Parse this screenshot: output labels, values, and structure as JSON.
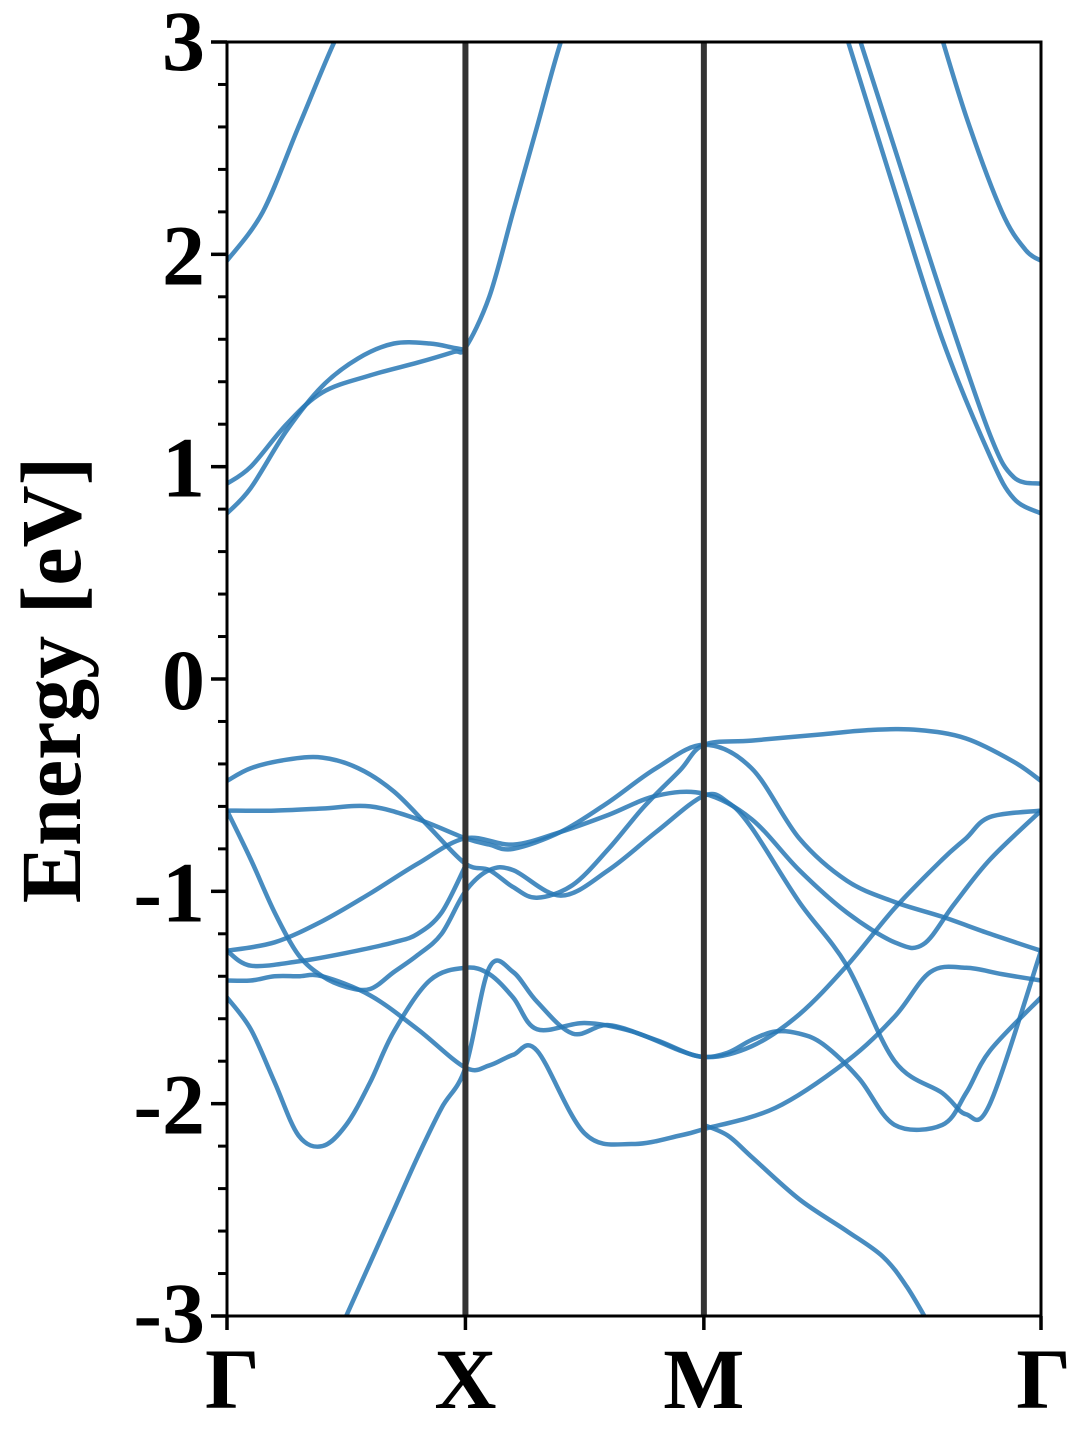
{
  "chart_data": {
    "type": "line",
    "title": "",
    "ylabel": "Energy [eV]",
    "xlabel": "",
    "ylim": [
      -3,
      3
    ],
    "yticks": [
      3,
      2,
      1,
      0,
      -1,
      -2,
      -3
    ],
    "y_minor_step": 0.2,
    "grid": false,
    "legend": "none",
    "kpoints": [
      {
        "label": "Γ",
        "x": 0
      },
      {
        "label": "X",
        "x": 1
      },
      {
        "label": "M",
        "x": 2
      },
      {
        "label": "Γ",
        "x": 3.414
      }
    ],
    "xlim": [
      0,
      3.414
    ],
    "line_color": "#2878b5",
    "kpoint_line_color": "#333333",
    "series": [
      {
        "x": [
          0,
          0.15,
          0.3,
          0.45,
          0.55
        ],
        "values": [
          1.97,
          2.2,
          2.6,
          3.0,
          3.2
        ]
      },
      {
        "x": [
          0,
          0.1,
          0.25,
          0.4,
          0.6,
          0.8,
          0.95,
          1.0,
          1.1,
          1.2,
          1.3,
          1.4,
          1.5
        ],
        "values": [
          0.92,
          1.0,
          1.2,
          1.35,
          1.43,
          1.49,
          1.54,
          1.56,
          1.8,
          2.2,
          2.6,
          3.0,
          3.3
        ]
      },
      {
        "x": [
          0,
          0.1,
          0.25,
          0.4,
          0.55,
          0.7,
          0.85,
          0.95,
          1.0
        ],
        "values": [
          0.78,
          0.9,
          1.17,
          1.38,
          1.51,
          1.58,
          1.58,
          1.56,
          1.55
        ]
      },
      {
        "x": [
          2.55,
          2.8,
          3.0,
          3.2,
          3.3,
          3.414
        ],
        "values": [
          3.2,
          2.3,
          1.6,
          1.05,
          0.85,
          0.78
        ]
      },
      {
        "x": [
          2.6,
          2.8,
          3.0,
          3.2,
          3.3,
          3.414
        ],
        "values": [
          3.2,
          2.5,
          1.8,
          1.15,
          0.95,
          0.92
        ]
      },
      {
        "x": [
          2.95,
          3.1,
          3.25,
          3.35,
          3.414
        ],
        "values": [
          3.2,
          2.65,
          2.2,
          2.02,
          1.97
        ]
      },
      {
        "x": [
          0,
          0.1,
          0.25,
          0.4,
          0.55,
          0.7,
          0.85,
          1.0,
          1.1,
          1.2,
          1.3,
          1.45,
          1.6,
          1.75,
          1.9,
          2.0,
          2.2,
          2.5,
          2.7,
          2.9,
          3.1,
          3.3,
          3.414
        ],
        "values": [
          -0.48,
          -0.42,
          -0.38,
          -0.37,
          -0.42,
          -0.53,
          -0.7,
          -0.87,
          -0.9,
          -0.98,
          -1.03,
          -0.97,
          -0.8,
          -0.6,
          -0.43,
          -0.31,
          -0.29,
          -0.26,
          -0.24,
          -0.24,
          -0.28,
          -0.39,
          -0.48
        ]
      },
      {
        "x": [
          0,
          0.2,
          0.4,
          0.6,
          0.8,
          1.0,
          1.1,
          1.2,
          1.4,
          1.6,
          1.8,
          2.0,
          2.2,
          2.4,
          2.6,
          2.8,
          3.0,
          3.2,
          3.414
        ],
        "values": [
          -0.62,
          -0.62,
          -0.61,
          -0.6,
          -0.66,
          -0.75,
          -0.78,
          -0.8,
          -0.72,
          -0.58,
          -0.42,
          -0.31,
          -0.42,
          -0.75,
          -0.95,
          -1.05,
          -1.12,
          -1.2,
          -1.28
        ]
      },
      {
        "x": [
          0,
          0.2,
          0.4,
          0.6,
          0.8,
          1.0,
          1.2,
          1.4,
          1.6,
          1.8,
          2.0,
          2.2,
          2.4,
          2.6,
          2.8,
          2.92,
          3.05,
          3.2,
          3.414
        ],
        "values": [
          -1.28,
          -1.24,
          -1.14,
          -1.01,
          -0.87,
          -0.75,
          -0.78,
          -0.72,
          -0.64,
          -0.55,
          -0.54,
          -0.66,
          -0.9,
          -1.1,
          -1.24,
          -1.25,
          -1.06,
          -0.85,
          -0.62
        ]
      },
      {
        "x": [
          0,
          0.1,
          0.2,
          0.3,
          0.4,
          0.5,
          0.6,
          0.7,
          0.8,
          0.9,
          1.0,
          1.1,
          1.2,
          1.4,
          1.6,
          1.8,
          2.0,
          2.1,
          2.2,
          2.4,
          2.6,
          2.8,
          3.0,
          3.1,
          3.2,
          3.414
        ],
        "values": [
          -0.62,
          -0.85,
          -1.1,
          -1.3,
          -1.4,
          -1.45,
          -1.46,
          -1.38,
          -1.3,
          -1.2,
          -1.0,
          -0.9,
          -0.9,
          -1.02,
          -0.9,
          -0.72,
          -0.55,
          -0.58,
          -0.7,
          -1.05,
          -1.35,
          -1.8,
          -1.95,
          -2.05,
          -2.0,
          -1.28
        ]
      },
      {
        "x": [
          0,
          0.1,
          0.3,
          0.5,
          0.7,
          0.8,
          0.9,
          1.0
        ],
        "values": [
          -1.28,
          -1.35,
          -1.33,
          -1.29,
          -1.24,
          -1.2,
          -1.1,
          -0.88
        ]
      },
      {
        "x": [
          0,
          0.1,
          0.2,
          0.3,
          0.4,
          0.6,
          0.8,
          1.0,
          1.1,
          1.2,
          1.3,
          1.5,
          1.7,
          1.9,
          2.0,
          2.3,
          2.6,
          2.8,
          2.95,
          3.1,
          3.25,
          3.414
        ],
        "values": [
          -1.42,
          -1.42,
          -1.4,
          -1.4,
          -1.4,
          -1.49,
          -1.65,
          -1.83,
          -1.82,
          -1.77,
          -1.75,
          -2.14,
          -2.19,
          -2.15,
          -2.12,
          -2.02,
          -1.8,
          -1.59,
          -1.38,
          -1.36,
          -1.39,
          -1.42
        ]
      },
      {
        "x": [
          0,
          0.1,
          0.2,
          0.3,
          0.4,
          0.5,
          0.6,
          0.7,
          0.85,
          1.0,
          1.1,
          1.2,
          1.3,
          1.5,
          1.7,
          1.9,
          2.0,
          2.1,
          2.2,
          2.3,
          2.4,
          2.5,
          2.65,
          2.8,
          3.0,
          3.1,
          3.2,
          3.414
        ],
        "values": [
          -1.5,
          -1.65,
          -1.9,
          -2.15,
          -2.2,
          -2.1,
          -1.9,
          -1.66,
          -1.42,
          -1.36,
          -1.39,
          -1.5,
          -1.65,
          -1.62,
          -1.66,
          -1.75,
          -1.78,
          -1.76,
          -1.7,
          -1.66,
          -1.67,
          -1.72,
          -1.88,
          -2.1,
          -2.1,
          -1.95,
          -1.75,
          -1.5
        ]
      },
      {
        "x": [
          0.5,
          0.6,
          0.7,
          0.8,
          0.9,
          1.0,
          1.1,
          1.2,
          1.3,
          1.45,
          1.6,
          1.8,
          2.0,
          2.2,
          2.4,
          2.6,
          2.8,
          3.0,
          3.1,
          3.2,
          3.414
        ],
        "values": [
          -3.0,
          -2.75,
          -2.5,
          -2.25,
          -2.02,
          -1.83,
          -1.36,
          -1.38,
          -1.52,
          -1.67,
          -1.63,
          -1.7,
          -1.78,
          -1.73,
          -1.58,
          -1.35,
          -1.08,
          -0.85,
          -0.75,
          -0.65,
          -0.62
        ]
      },
      {
        "x": [
          2.0,
          2.1,
          2.2,
          2.4,
          2.6,
          2.75,
          2.85,
          2.95
        ],
        "values": [
          -2.1,
          -2.15,
          -2.25,
          -2.45,
          -2.6,
          -2.72,
          -2.86,
          -3.05
        ]
      }
    ]
  }
}
